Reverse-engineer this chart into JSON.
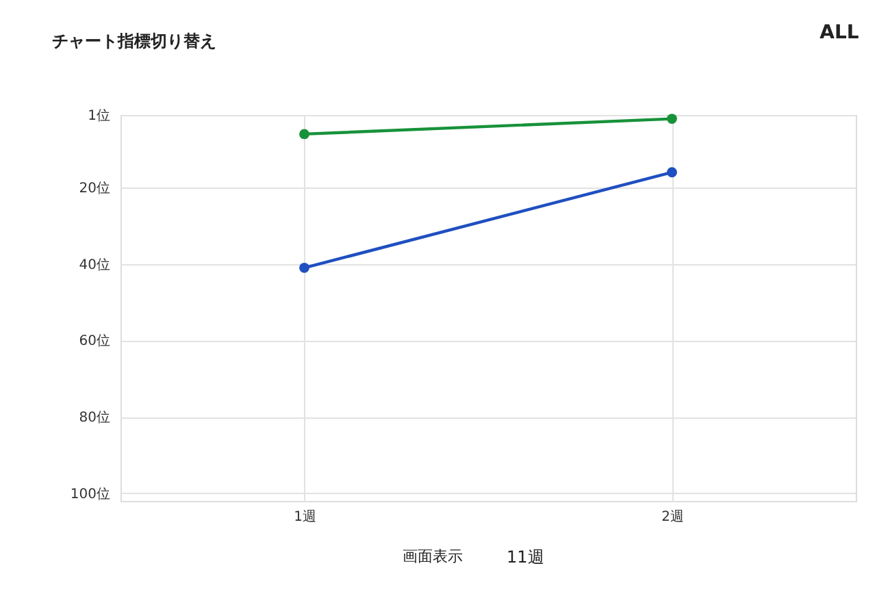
{
  "chart_data": {
    "type": "line",
    "categories": [
      "1週",
      "2週"
    ],
    "series": [
      {
        "color": "#17923a",
        "values": [
          6,
          2
        ]
      },
      {
        "color": "#1f4fc0",
        "values": [
          41,
          16
        ]
      }
    ],
    "ylim": [
      102,
      1
    ],
    "yticks": [
      {
        "value": 1,
        "label": "1位"
      },
      {
        "value": 20,
        "label": "20位"
      },
      {
        "value": 40,
        "label": "40位"
      },
      {
        "value": 60,
        "label": "60位"
      },
      {
        "value": 80,
        "label": "80位"
      },
      {
        "value": 100,
        "label": "100位"
      }
    ],
    "grid": true,
    "marker": "circle",
    "line_style": "solid",
    "annotations": [
      "チャート指標切り替え",
      "ALL",
      "画面表示",
      "11週"
    ]
  }
}
